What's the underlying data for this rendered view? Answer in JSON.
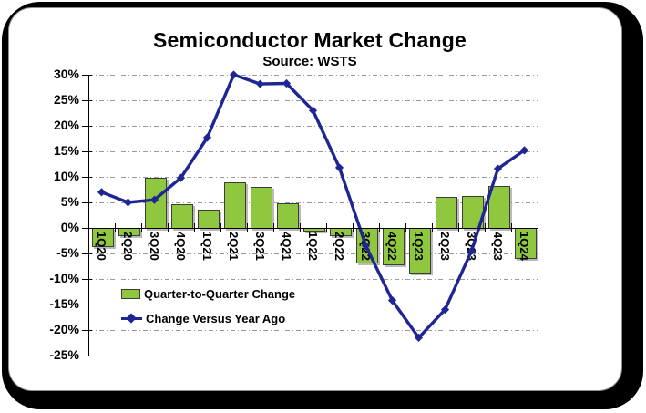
{
  "header": {
    "title": "Semiconductor Market Change",
    "subtitle": "Source: WSTS"
  },
  "legend": {
    "items": [
      {
        "label": "Quarter-to-Quarter Change",
        "marker": "green-box",
        "color": "#8FC73E"
      },
      {
        "label": "Change Versus Year Ago",
        "marker": "navy-diamond-line",
        "color": "#1F2693"
      }
    ],
    "position": "inside-bottom-left",
    "background": "transparent"
  },
  "chart_data": {
    "type": "bar",
    "combo_with_line": true,
    "title": "Semiconductor Market Change",
    "subtitle": "Source: WSTS",
    "categories": [
      "1Q20",
      "2Q20",
      "3Q20",
      "4Q20",
      "1Q21",
      "2Q21",
      "3Q21",
      "4Q21",
      "1Q22",
      "2Q22",
      "3Q22",
      "4Q22",
      "1Q23",
      "2Q23",
      "3Q23",
      "4Q23",
      "1Q24"
    ],
    "series": [
      {
        "name": "Quarter-to-Quarter Change",
        "type": "bar",
        "color": "#8FC73E",
        "values": [
          -3.5,
          -1.5,
          9.8,
          4.7,
          3.6,
          9.0,
          8.1,
          4.9,
          -0.5,
          -1.4,
          -6.7,
          -7.1,
          -8.7,
          6.0,
          6.3,
          8.2,
          -5.9
        ]
      },
      {
        "name": "Change Versus Year Ago",
        "type": "line",
        "color": "#1F2693",
        "marker": "diamond",
        "values": [
          7.0,
          5.0,
          5.5,
          9.8,
          17.7,
          30.0,
          28.2,
          28.3,
          23.0,
          11.8,
          -3.5,
          -14.2,
          -21.5,
          -16.0,
          -4.5,
          11.6,
          15.2
        ]
      }
    ],
    "xlabel": "",
    "ylabel": "",
    "ylim": [
      -25,
      30
    ],
    "ytick_step": 5,
    "ytick_suffix": "%",
    "grid": "horizontal-dash-dot",
    "x_label_rotation": 90,
    "legend_position": "inside-bottom-left"
  },
  "colors": {
    "bar_fill": "#8FC73E",
    "bar_border": "#3C3C3C",
    "line": "#1F2693",
    "grid": "#9B9B9B",
    "axis": "#000000",
    "frame": "#000000",
    "card_bg": "#FFFFFF",
    "text": "#000000"
  }
}
